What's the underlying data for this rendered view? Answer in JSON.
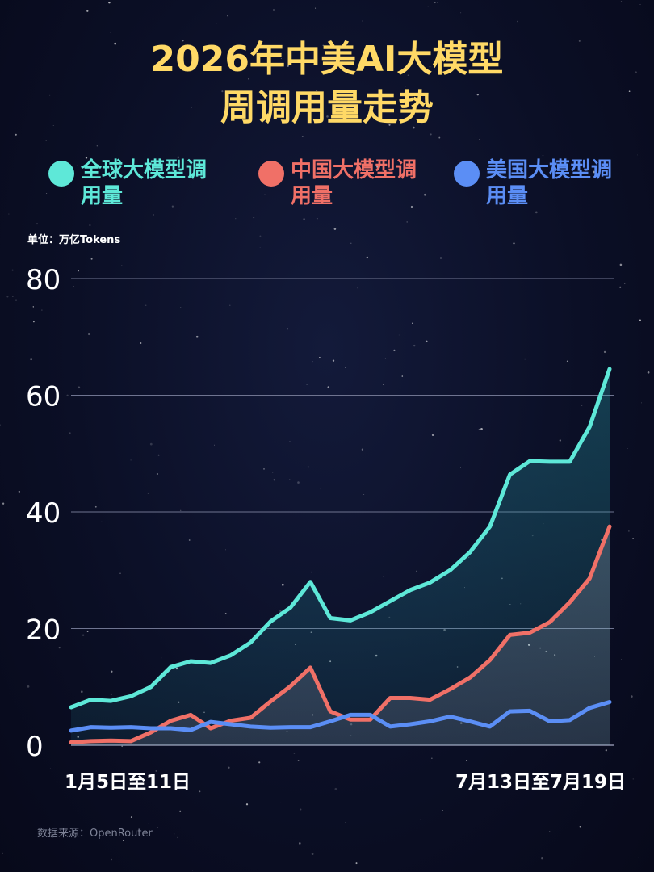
{
  "title_lines": [
    "2026年中美AI大模型",
    "周调用量走势"
  ],
  "unit_label": "单位：万亿Tokens",
  "source_label": "数据来源：OpenRouter",
  "legend": [
    {
      "label": "全球大模型调用量",
      "color": "#5ee8d8"
    },
    {
      "label": "中国大模型调用量",
      "color": "#f07067"
    },
    {
      "label": "美国大模型调用量",
      "color": "#5b8ef5"
    }
  ],
  "chart_data": {
    "type": "line",
    "title": "2026年中美AI大模型周调用量走势",
    "ylabel": "单位：万亿Tokens",
    "ylim": [
      0,
      80
    ],
    "yticks": [
      0,
      20,
      40,
      60,
      80
    ],
    "x_tick_labels": [
      {
        "index": 0,
        "label": "1月5日至11日"
      },
      {
        "index": 27,
        "label": "7月13日至7月19日"
      }
    ],
    "x_count": 28,
    "grid": true,
    "legend_position": "top",
    "series": [
      {
        "name": "全球大模型调用量",
        "color": "#5ee8d8",
        "values": [
          6.5,
          7.8,
          7.6,
          8.4,
          10.0,
          13.4,
          14.4,
          14.1,
          15.4,
          17.6,
          21.2,
          23.6,
          28.0,
          21.8,
          21.4,
          22.8,
          24.7,
          26.6,
          27.9,
          30.0,
          33.1,
          37.5,
          46.4,
          48.7,
          48.6,
          48.6,
          54.6,
          64.5
        ]
      },
      {
        "name": "中国大模型调用量",
        "color": "#f07067",
        "values": [
          0.5,
          0.7,
          0.8,
          0.7,
          2.2,
          4.2,
          5.2,
          2.9,
          4.2,
          4.7,
          7.5,
          10.1,
          13.3,
          5.8,
          4.4,
          4.4,
          8.1,
          8.1,
          7.8,
          9.6,
          11.6,
          14.6,
          18.9,
          19.3,
          21.1,
          24.5,
          28.6,
          37.5
        ]
      },
      {
        "name": "美国大模型调用量",
        "color": "#5b8ef5",
        "values": [
          2.5,
          3.1,
          3.0,
          3.1,
          2.9,
          2.9,
          2.6,
          4.0,
          3.6,
          3.2,
          3.0,
          3.1,
          3.1,
          4.1,
          5.2,
          5.2,
          3.2,
          3.6,
          4.1,
          4.9,
          4.1,
          3.2,
          5.8,
          5.9,
          4.1,
          4.3,
          6.4,
          7.4
        ]
      }
    ]
  }
}
